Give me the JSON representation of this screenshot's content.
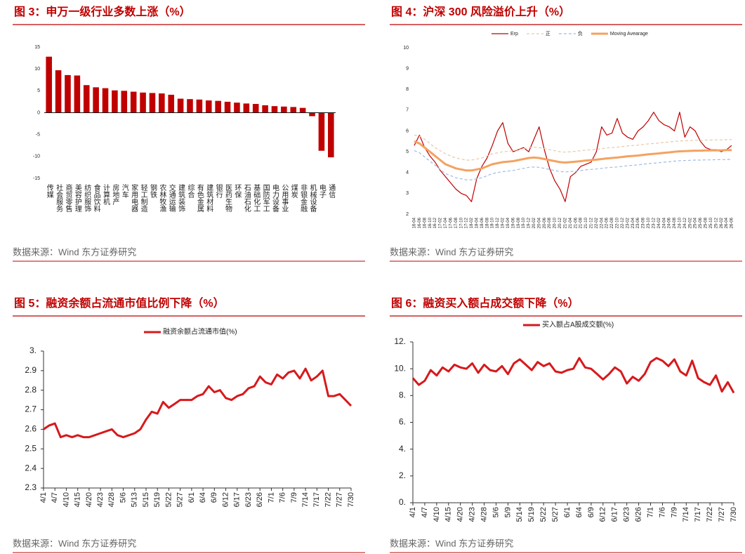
{
  "chart_data": [
    {
      "type": "bar",
      "title": "图 3：申万一级行业多数上涨（%）",
      "source": "数据来源：Wind 东方证券研究",
      "color": "#c00000",
      "categories": [
        "传媒",
        "社会服务",
        "商贸零售",
        "美容护理",
        "纺织服饰",
        "食品饮料",
        "计算机",
        "房地产",
        "汽车",
        "家用电器",
        "轻工制造",
        "钢铁",
        "农林牧渔",
        "交通运输",
        "建筑装饰",
        "综合",
        "有色金属",
        "建筑材料",
        "银行",
        "医药生物",
        "环保",
        "石油石化",
        "基础化工",
        "国防军工",
        "电力设备",
        "公用事业",
        "煤炭",
        "非银金融",
        "机械设备",
        "电子",
        "通信"
      ],
      "values": [
        12.8,
        9.7,
        8.6,
        8.5,
        6.3,
        5.8,
        5.6,
        5.1,
        5.0,
        4.8,
        4.6,
        4.5,
        4.4,
        4.1,
        3.2,
        3.1,
        3.0,
        2.8,
        2.7,
        2.5,
        2.3,
        2.1,
        2.0,
        1.7,
        1.5,
        1.4,
        1.3,
        1.1,
        -0.8,
        -8.7,
        -10.2
      ],
      "ylim": [
        -15,
        15
      ],
      "yticks": [
        15,
        10,
        5,
        0,
        -5,
        -10,
        -15
      ]
    },
    {
      "type": "line",
      "title": "图 4：沪深 300 风险溢价上升（%）",
      "source": "数据来源：Wind 东方证券研究",
      "legend": "top",
      "categories": [
        "16-04",
        "16-06",
        "16-08",
        "16-10",
        "16-12",
        "17-02",
        "17-04",
        "17-06",
        "17-08",
        "17-10",
        "17-12",
        "18-02",
        "18-04",
        "18-06",
        "18-08",
        "18-10",
        "18-12",
        "19-02",
        "19-04",
        "19-06",
        "19-08",
        "19-10",
        "19-12",
        "20-02",
        "20-04",
        "20-06",
        "20-08",
        "20-10",
        "20-12",
        "21-02",
        "21-04",
        "21-06",
        "21-08",
        "21-10",
        "21-12",
        "22-02",
        "22-04",
        "22-06",
        "22-08",
        "22-10",
        "22-12",
        "23-02",
        "23-04",
        "23-06",
        "23-08",
        "23-10",
        "23-12",
        "24-02",
        "24-04",
        "24-06",
        "24-08",
        "24-10",
        "24-12",
        "25-02",
        "25-04",
        "25-06",
        "25-08",
        "25-10",
        "25-12",
        "26-02",
        "26-04",
        "26-06"
      ],
      "series": [
        {
          "name": "Erp",
          "color": "#c00000",
          "style": "solid",
          "linewidth": 1.2,
          "values": [
            5.3,
            5.8,
            5.2,
            4.8,
            4.5,
            4.1,
            3.8,
            3.5,
            3.2,
            3.0,
            2.9,
            2.6,
            3.7,
            4.3,
            4.7,
            5.3,
            6.0,
            6.4,
            5.4,
            5.0,
            5.1,
            5.2,
            5.0,
            5.6,
            6.2,
            5.1,
            4.2,
            3.6,
            3.2,
            2.6,
            3.8,
            4.0,
            4.3,
            4.4,
            4.5,
            5.0,
            6.2,
            5.8,
            5.9,
            6.6,
            5.9,
            5.7,
            5.6,
            6.0,
            6.2,
            6.5,
            6.9,
            6.5,
            6.3,
            6.2,
            6.0,
            6.9,
            5.7,
            6.2,
            6.0,
            5.5,
            5.2,
            5.1,
            5.1,
            5.0,
            5.1,
            5.3
          ]
        },
        {
          "name": "正",
          "color": "#e6c9a8",
          "style": "dashed",
          "linewidth": 1.2,
          "values": [
            5.8,
            5.75,
            5.6,
            5.4,
            5.2,
            5.05,
            4.9,
            4.8,
            4.7,
            4.65,
            4.6,
            4.6,
            4.65,
            4.7,
            4.8,
            4.9,
            4.95,
            5.0,
            5.02,
            5.05,
            5.1,
            5.15,
            5.2,
            5.22,
            5.2,
            5.15,
            5.1,
            5.05,
            5.0,
            4.98,
            5.0,
            5.02,
            5.05,
            5.08,
            5.1,
            5.12,
            5.15,
            5.18,
            5.2,
            5.22,
            5.25,
            5.28,
            5.3,
            5.32,
            5.35,
            5.38,
            5.4,
            5.42,
            5.45,
            5.47,
            5.5,
            5.52,
            5.53,
            5.54,
            5.55,
            5.55,
            5.56,
            5.56,
            5.57,
            5.57,
            5.58,
            5.58
          ]
        },
        {
          "name": "负",
          "color": "#9dbbe8",
          "style": "dashed",
          "linewidth": 1.2,
          "values": [
            5.05,
            4.95,
            4.75,
            4.55,
            4.35,
            4.15,
            3.95,
            3.85,
            3.75,
            3.7,
            3.65,
            3.65,
            3.7,
            3.75,
            3.85,
            3.95,
            4.0,
            4.05,
            4.07,
            4.1,
            4.15,
            4.2,
            4.25,
            4.27,
            4.25,
            4.2,
            4.15,
            4.1,
            4.05,
            4.03,
            4.05,
            4.07,
            4.1,
            4.13,
            4.15,
            4.17,
            4.2,
            4.23,
            4.25,
            4.27,
            4.3,
            4.33,
            4.35,
            4.37,
            4.4,
            4.43,
            4.45,
            4.47,
            4.5,
            4.52,
            4.55,
            4.57,
            4.58,
            4.59,
            4.6,
            4.6,
            4.61,
            4.61,
            4.62,
            4.62,
            4.63,
            4.63
          ]
        },
        {
          "name": "Moving Avearage",
          "color": "#f4a261",
          "style": "solid",
          "linewidth": 3,
          "values": [
            5.5,
            5.4,
            5.2,
            5.0,
            4.8,
            4.6,
            4.4,
            4.3,
            4.2,
            4.15,
            4.1,
            4.1,
            4.15,
            4.2,
            4.3,
            4.4,
            4.45,
            4.5,
            4.52,
            4.55,
            4.6,
            4.65,
            4.7,
            4.72,
            4.7,
            4.65,
            4.6,
            4.55,
            4.5,
            4.48,
            4.5,
            4.52,
            4.55,
            4.58,
            4.6,
            4.62,
            4.65,
            4.68,
            4.7,
            4.72,
            4.75,
            4.78,
            4.8,
            4.82,
            4.85,
            4.88,
            4.9,
            4.92,
            4.95,
            4.97,
            5.0,
            5.02,
            5.03,
            5.04,
            5.05,
            5.05,
            5.06,
            5.06,
            5.07,
            5.07,
            5.08,
            5.08
          ]
        }
      ],
      "ylim": [
        2,
        10
      ],
      "yticks": [
        2,
        3,
        4,
        5,
        6,
        7,
        8,
        9,
        10
      ],
      "axis_lines": false
    },
    {
      "type": "line",
      "title": "图 5：融资余额占流通市值比例下降（%）",
      "source": "数据来源：Wind 东方证券研究",
      "legend": "top",
      "categories": [
        "4/1",
        null,
        "4/7",
        null,
        "4/10",
        null,
        "4/15",
        null,
        "4/20",
        null,
        "4/23",
        null,
        "4/28",
        null,
        "5/6",
        null,
        "5/13",
        null,
        "5/15",
        null,
        "5/19",
        null,
        "5/22",
        null,
        "5/27",
        null,
        "6/1",
        null,
        "6/4",
        null,
        "6/9",
        null,
        "6/12",
        null,
        "6/17",
        null,
        "6/23",
        null,
        "6/26",
        null,
        "7/1",
        null,
        "7/6",
        null,
        "7/9",
        null,
        "7/14",
        null,
        "7/17",
        null,
        "7/22",
        null,
        "7/27",
        null,
        "7/30"
      ],
      "series": [
        {
          "name": "融资余额占流通市值(%)",
          "color": "#d7191c",
          "style": "solid",
          "linewidth": 3,
          "values": [
            2.6,
            2.62,
            2.63,
            2.56,
            2.57,
            2.56,
            2.57,
            2.56,
            2.56,
            2.57,
            2.58,
            2.59,
            2.6,
            2.57,
            2.56,
            2.57,
            2.58,
            2.6,
            2.65,
            2.69,
            2.68,
            2.74,
            2.71,
            2.73,
            2.75,
            2.75,
            2.75,
            2.77,
            2.78,
            2.82,
            2.79,
            2.8,
            2.76,
            2.75,
            2.77,
            2.78,
            2.81,
            2.82,
            2.87,
            2.84,
            2.83,
            2.88,
            2.86,
            2.89,
            2.9,
            2.86,
            2.91,
            2.85,
            2.87,
            2.9,
            2.77,
            2.77,
            2.78,
            2.75,
            2.72
          ]
        }
      ],
      "ylim": [
        2.3,
        3.0
      ],
      "yticks": [
        2.3,
        2.4,
        2.5,
        2.6,
        2.7,
        2.8,
        2.9,
        {
          "value": 3,
          "label": "3."
        }
      ],
      "axis_lines": true
    },
    {
      "type": "line",
      "title": "图 6：融资买入额占成交额下降（%）",
      "source": "数据来源：Wind 东方证券研究",
      "legend": "top",
      "categories": [
        "4/1",
        null,
        "4/7",
        null,
        "4/10",
        null,
        "4/15",
        null,
        "4/20",
        null,
        "4/23",
        null,
        "4/28",
        null,
        "5/6",
        null,
        "5/9",
        null,
        "5/14",
        null,
        "5/19",
        null,
        "5/22",
        null,
        "5/27",
        null,
        "6/1",
        null,
        "6/4",
        null,
        "6/9",
        null,
        "6/12",
        null,
        "6/17",
        null,
        "6/23",
        null,
        "6/26",
        null,
        "7/1",
        null,
        "7/6",
        null,
        "7/9",
        null,
        "7/14",
        null,
        "7/17",
        null,
        "7/22",
        null,
        "7/27",
        null,
        "7/30"
      ],
      "series": [
        {
          "name": "买入额占A股成交额(%)",
          "color": "#d7191c",
          "style": "solid",
          "linewidth": 3,
          "values": [
            9.3,
            8.8,
            9.1,
            9.9,
            9.5,
            10.1,
            9.8,
            10.3,
            10.1,
            10.0,
            10.4,
            9.7,
            10.3,
            9.9,
            9.8,
            10.2,
            9.6,
            10.4,
            10.7,
            10.3,
            9.9,
            10.5,
            10.2,
            10.4,
            9.8,
            9.7,
            9.9,
            10.0,
            10.8,
            10.1,
            10.0,
            9.6,
            9.2,
            9.6,
            10.1,
            9.8,
            8.9,
            9.4,
            9.1,
            9.6,
            10.5,
            10.8,
            10.6,
            10.2,
            10.7,
            9.8,
            9.5,
            10.6,
            9.3,
            9.0,
            8.8,
            9.5,
            8.3,
            9.0,
            8.2
          ]
        }
      ],
      "ylim": [
        0,
        12
      ],
      "yticks": [
        {
          "value": 0,
          "label": "0."
        },
        {
          "value": 2,
          "label": "2."
        },
        {
          "value": 4,
          "label": "4."
        },
        {
          "value": 6,
          "label": "6."
        },
        {
          "value": 8,
          "label": "8."
        },
        {
          "value": 10,
          "label": "10."
        },
        {
          "value": 12,
          "label": "12."
        }
      ],
      "axis_lines": true
    }
  ]
}
